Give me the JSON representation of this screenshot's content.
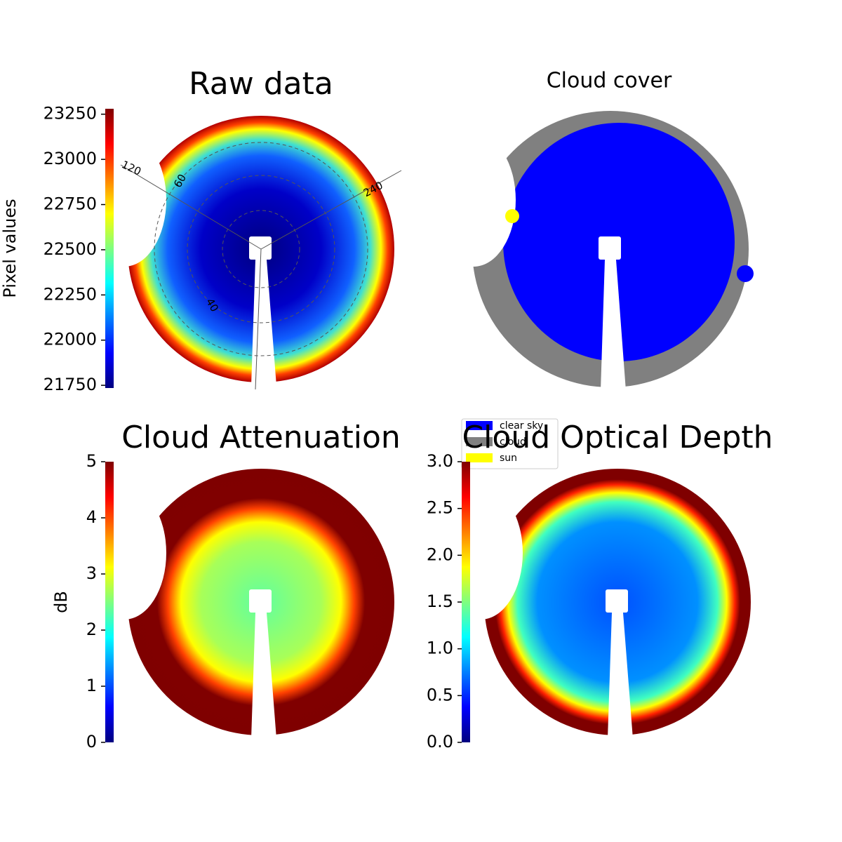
{
  "chart_data": [
    {
      "type": "heatmap",
      "title": "Raw data",
      "colormap": "jet",
      "colorbar_label": "Pixel values",
      "clim": [
        21735,
        23280
      ],
      "cticks": [
        21750,
        22000,
        22250,
        22500,
        22750,
        23000,
        23250
      ],
      "annotations": [
        "120",
        "60",
        "240",
        "40"
      ]
    },
    {
      "type": "categorical",
      "title": "Cloud cover",
      "series": [
        {
          "name": "clear sky",
          "color": "#0000ff"
        },
        {
          "name": "cloud",
          "color": "#808080"
        },
        {
          "name": "sun",
          "color": "#ffff00"
        }
      ]
    },
    {
      "type": "heatmap",
      "title": "Cloud Attenuation",
      "colormap": "jet",
      "colorbar_label": "dB",
      "clim": [
        0,
        5
      ],
      "cticks": [
        0,
        1,
        2,
        3,
        4,
        5
      ]
    },
    {
      "type": "heatmap",
      "title": "Cloud Optical Depth",
      "colormap": "jet",
      "clim": [
        0,
        3
      ],
      "cticks": [
        {
          "value": 0,
          "label": "0.0"
        },
        0.5,
        {
          "value": 1,
          "label": "1.0"
        },
        1.5,
        {
          "value": 2,
          "label": "2.0"
        },
        2.5,
        {
          "value": 3,
          "label": "3.0"
        }
      ]
    }
  ]
}
